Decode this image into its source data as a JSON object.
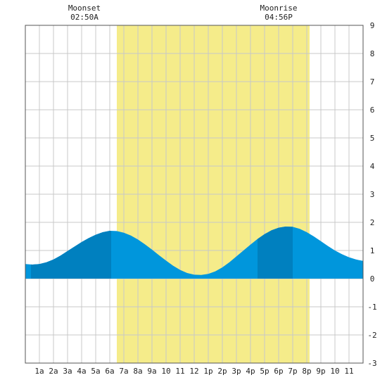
{
  "chart_data": {
    "type": "area",
    "title": "",
    "xlabel": "",
    "ylabel": "",
    "xlim": [
      0,
      24
    ],
    "ylim": [
      -3,
      9
    ],
    "grid": true,
    "x_ticks": [
      {
        "x": 1,
        "label": "1a"
      },
      {
        "x": 2,
        "label": "2a"
      },
      {
        "x": 3,
        "label": "3a"
      },
      {
        "x": 4,
        "label": "4a"
      },
      {
        "x": 5,
        "label": "5a"
      },
      {
        "x": 6,
        "label": "6a"
      },
      {
        "x": 7,
        "label": "7a"
      },
      {
        "x": 8,
        "label": "8a"
      },
      {
        "x": 9,
        "label": "9a"
      },
      {
        "x": 10,
        "label": "10"
      },
      {
        "x": 11,
        "label": "11"
      },
      {
        "x": 12,
        "label": "12"
      },
      {
        "x": 13,
        "label": "1p"
      },
      {
        "x": 14,
        "label": "2p"
      },
      {
        "x": 15,
        "label": "3p"
      },
      {
        "x": 16,
        "label": "4p"
      },
      {
        "x": 17,
        "label": "5p"
      },
      {
        "x": 18,
        "label": "6p"
      },
      {
        "x": 19,
        "label": "7p"
      },
      {
        "x": 20,
        "label": "8p"
      },
      {
        "x": 21,
        "label": "9p"
      },
      {
        "x": 22,
        "label": "10"
      },
      {
        "x": 23,
        "label": "11"
      }
    ],
    "y_ticks": [
      -3,
      -2,
      -1,
      0,
      1,
      2,
      3,
      4,
      5,
      6,
      7,
      8,
      9
    ],
    "daylight": {
      "start": 6.5,
      "end": 20.2
    },
    "dark_bands": [
      {
        "start": 0.4,
        "end": 6.1
      },
      {
        "start": 19.0,
        "end": 19.0
      }
    ],
    "series": [
      {
        "x": [
          0,
          0.5,
          1,
          1.5,
          2,
          2.5,
          3,
          3.5,
          4,
          4.5,
          5,
          5.5,
          6,
          6.5,
          7,
          7.5,
          8,
          8.5,
          9,
          9.5,
          10,
          10.5,
          11,
          11.5,
          12,
          12.5,
          13,
          13.5,
          14,
          14.5,
          15,
          15.5,
          16,
          16.5,
          17,
          17.5,
          18,
          18.5,
          19,
          19.5,
          20,
          20.5,
          21,
          21.5,
          22,
          22.5,
          23,
          23.5,
          24
        ],
        "values": [
          0.52,
          0.5,
          0.52,
          0.58,
          0.68,
          0.82,
          0.98,
          1.14,
          1.3,
          1.44,
          1.56,
          1.65,
          1.7,
          1.69,
          1.63,
          1.53,
          1.39,
          1.22,
          1.03,
          0.83,
          0.64,
          0.46,
          0.31,
          0.2,
          0.14,
          0.13,
          0.17,
          0.26,
          0.4,
          0.58,
          0.79,
          1.0,
          1.21,
          1.41,
          1.58,
          1.72,
          1.81,
          1.85,
          1.84,
          1.77,
          1.65,
          1.5,
          1.33,
          1.16,
          1.0,
          0.87,
          0.76,
          0.68,
          0.63
        ]
      }
    ],
    "dark_segments": [
      {
        "start": 0.4,
        "end": 6.1
      },
      {
        "start": 19.0,
        "end": 19.0
      }
    ],
    "annotations": [
      {
        "label": "Moonset",
        "time": "02:50A",
        "x": 4.2
      },
      {
        "label": "Moonrise",
        "time": "04:56P",
        "x": 18.0
      }
    ]
  }
}
